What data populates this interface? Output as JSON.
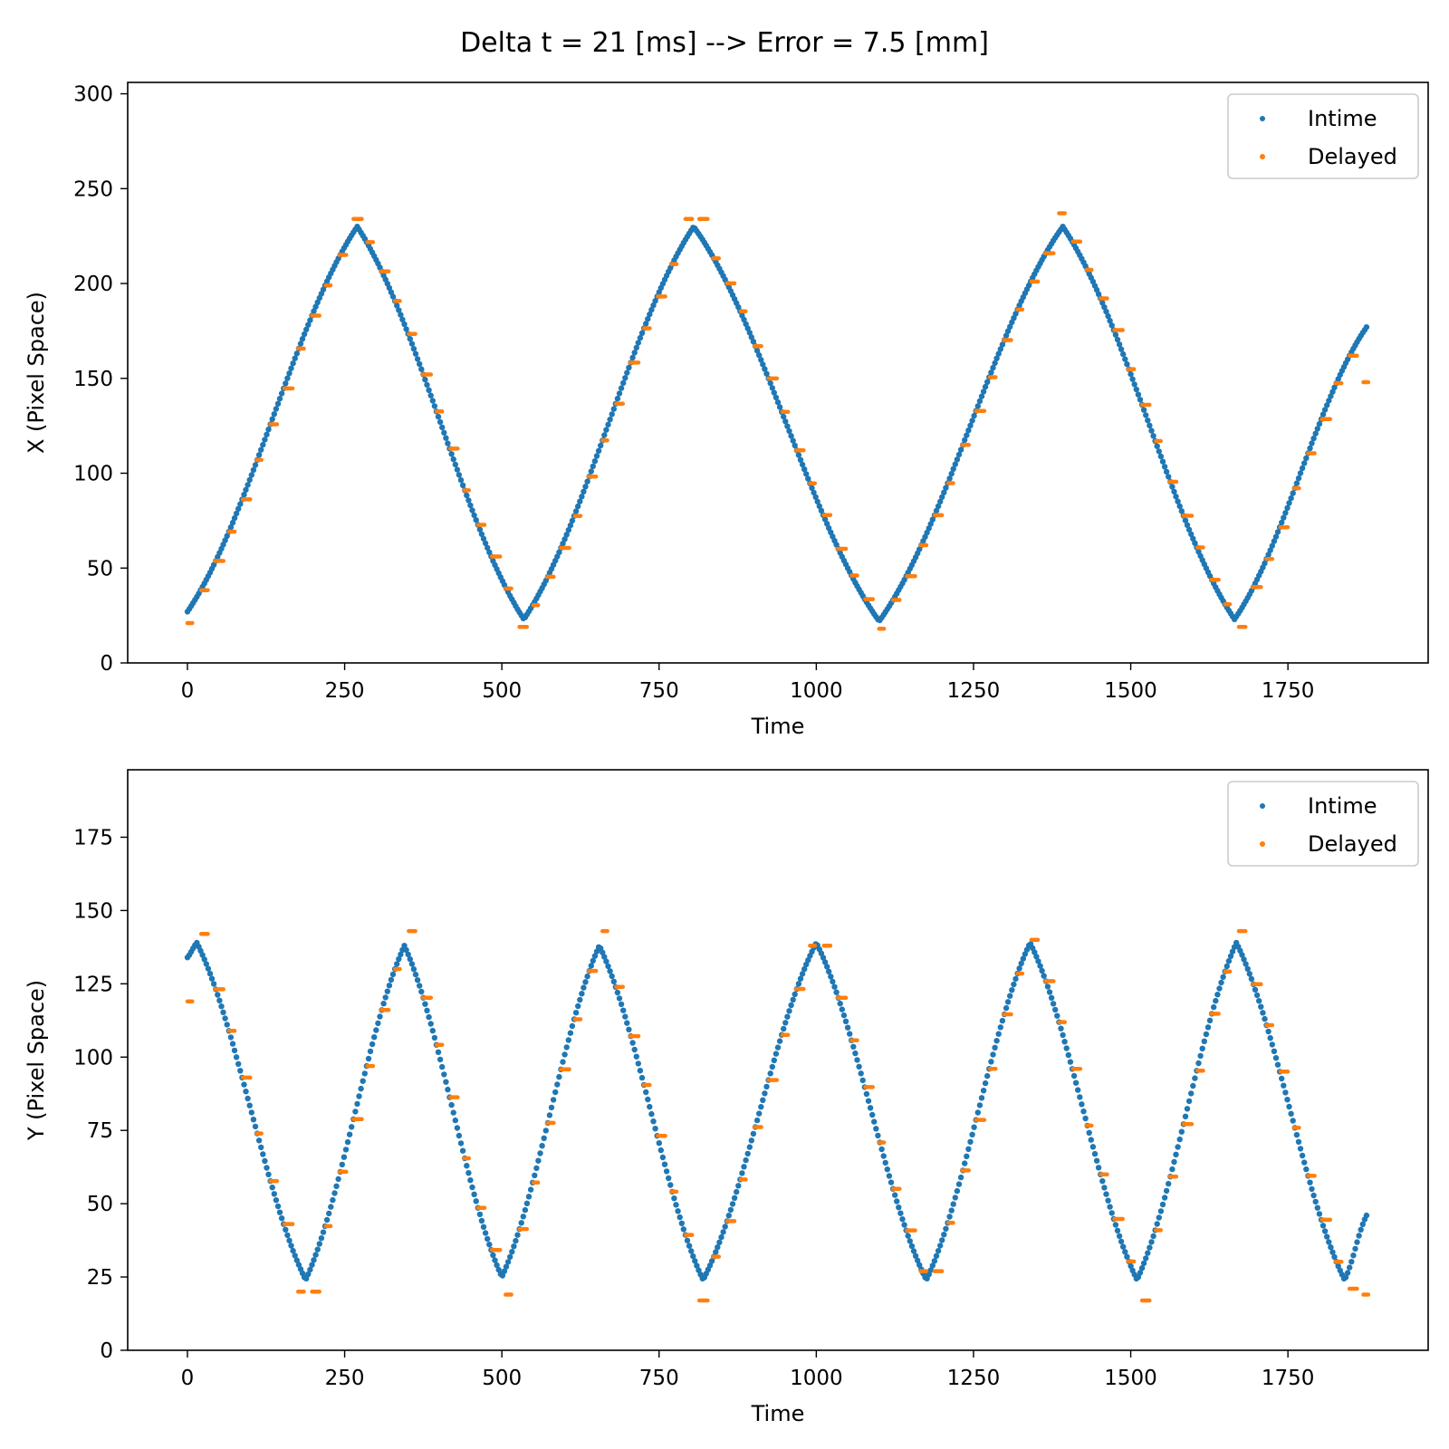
{
  "figure": {
    "suptitle": "Delta t = 21 [ms] --> Error = 7.5 [mm]"
  },
  "colors": {
    "intime": "#1f77b4",
    "delayed": "#ff7f0e"
  },
  "chart_data": [
    {
      "type": "scatter",
      "title": "",
      "xlabel": "Time",
      "ylabel": "X (Pixel Space)",
      "xlim": [
        -95,
        1973
      ],
      "ylim": [
        0,
        306
      ],
      "xticks": [
        0,
        250,
        500,
        750,
        1000,
        1250,
        1500,
        1750
      ],
      "yticks": [
        0,
        50,
        100,
        150,
        200,
        250,
        300
      ],
      "grid": false,
      "legend_position": "top-right",
      "series": [
        {
          "name": "Intime",
          "color": "#1f77b4",
          "x": [
            0,
            270,
            535,
            805,
            1100,
            1392,
            1665,
            1875
          ],
          "y": [
            27,
            230,
            23,
            230,
            22,
            230,
            23,
            177
          ]
        },
        {
          "name": "Delayed",
          "color": "#ff7f0e",
          "x": [
            0,
            270,
            535,
            805,
            1100,
            1392,
            1665,
            1875
          ],
          "y": [
            21,
            234,
            19,
            234,
            18,
            237,
            19,
            148
          ]
        }
      ]
    },
    {
      "type": "scatter",
      "title": "",
      "xlabel": "Time",
      "ylabel": "Y (Pixel Space)",
      "xlim": [
        -95,
        1973
      ],
      "ylim": [
        0,
        198
      ],
      "xticks": [
        0,
        250,
        500,
        750,
        1000,
        1250,
        1500,
        1750
      ],
      "yticks": [
        0,
        25,
        50,
        75,
        100,
        125,
        150,
        175
      ],
      "grid": false,
      "legend_position": "top-right",
      "series": [
        {
          "name": "Intime",
          "color": "#1f77b4",
          "x": [
            0,
            15,
            188,
            345,
            500,
            655,
            820,
            1000,
            1175,
            1340,
            1510,
            1668,
            1840,
            1875
          ],
          "y": [
            134,
            139,
            24,
            138,
            25,
            138,
            24,
            139,
            24,
            139,
            24,
            139,
            24,
            46
          ]
        },
        {
          "name": "Delayed",
          "color": "#ff7f0e",
          "x": [
            0,
            15,
            188,
            345,
            500,
            655,
            820,
            1000,
            1175,
            1340,
            1510,
            1668,
            1840,
            1875
          ],
          "y": [
            119,
            142,
            20,
            143,
            19,
            143,
            17,
            138,
            27,
            140,
            17,
            143,
            21,
            19
          ]
        }
      ]
    }
  ]
}
